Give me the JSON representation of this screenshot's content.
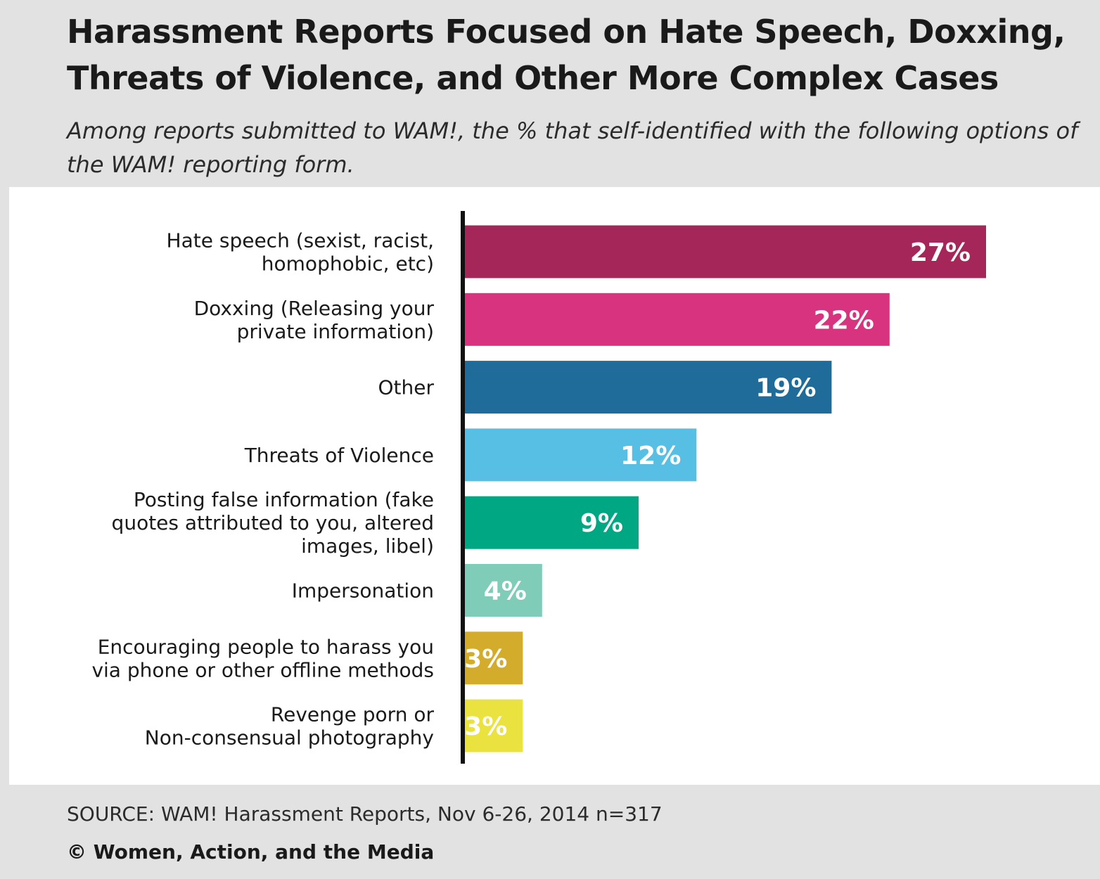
{
  "header": {
    "title": "Harassment Reports Focused on Hate Speech, Doxxing, Threats of Violence, and Other More Complex Cases",
    "subtitle": "Among reports submitted to WAM!, the % that self-identified with the following options of the WAM! reporting form."
  },
  "footer": {
    "source": "SOURCE: WAM! Harassment Reports, Nov 6-26, 2014 n=317",
    "copyright": "© Women, Action, and the Media"
  },
  "chart_data": {
    "type": "bar",
    "orientation": "horizontal",
    "value_suffix": "%",
    "categories": [
      [
        "Hate speech (sexist, racist,",
        "homophobic, etc)"
      ],
      [
        "Doxxing (Releasing your",
        "private information)"
      ],
      [
        "Other"
      ],
      [
        "Threats of Violence"
      ],
      [
        "Posting false information (fake",
        "quotes attributed to you, altered",
        "images, libel)"
      ],
      [
        "Impersonation"
      ],
      [
        "Encouraging people to harass you",
        "via phone or other offline methods"
      ],
      [
        "Revenge porn or",
        "Non-consensual photography"
      ]
    ],
    "values": [
      27,
      22,
      19,
      12,
      9,
      4,
      3,
      3
    ],
    "colors": [
      "#a5275a",
      "#d7337f",
      "#1f6b99",
      "#56bfe3",
      "#00a783",
      "#7fccb8",
      "#d4ac2b",
      "#e9e23f"
    ],
    "xlim": [
      0,
      27
    ],
    "grid": false,
    "legend": "none"
  }
}
